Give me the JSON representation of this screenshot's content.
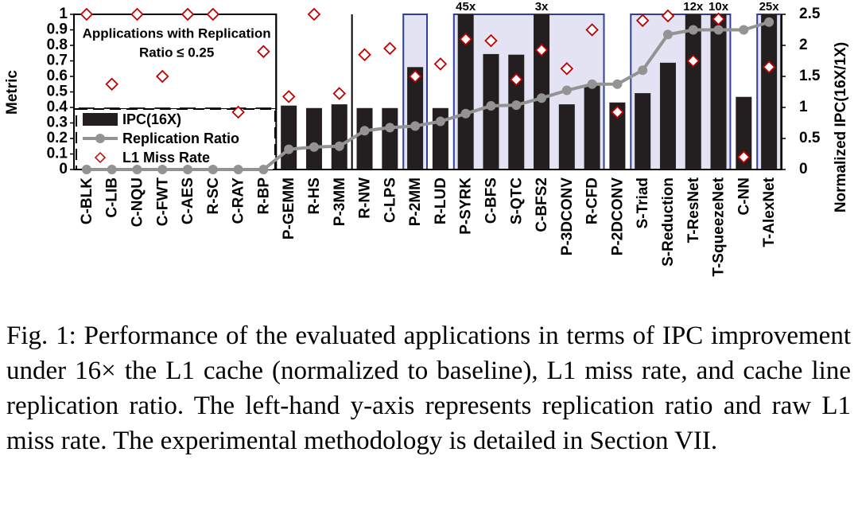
{
  "chart_data": {
    "type": "bar-line",
    "ylabel": "Metric",
    "y2label": "Normalized IPC(16X/1X)",
    "annotation": [
      "Applications with Replication",
      "Ratio ≤ 0.25"
    ],
    "categories": [
      "C-BLK",
      "C-LIB",
      "C-NQU",
      "C-FWT",
      "C-AES",
      "R-SC",
      "C-RAY",
      "R-BP",
      "P-GEMM",
      "R-HS",
      "P-3MM",
      "R-NW",
      "C-LPS",
      "P-2MM",
      "R-LUD",
      "P-SYRK",
      "C-BFS",
      "S-QTC",
      "C-BFS2",
      "P-3DCONV",
      "R-CFD",
      "P-2DCONV",
      "S-Triad",
      "S-Reduction",
      "T-ResNet",
      "T-SqueezeNet",
      "C-NN",
      "T-AlexNet"
    ],
    "series": [
      {
        "name": "IPC(16X)",
        "type": "bar",
        "axis": "y2",
        "color": "#231f20",
        "values": [
          1,
          1,
          1,
          1,
          1,
          1,
          1,
          1,
          1.03,
          0.99,
          1.05,
          0.99,
          0.99,
          1.65,
          0.99,
          45,
          1.86,
          1.85,
          3,
          1.05,
          1.35,
          1.08,
          1.23,
          1.72,
          12,
          10,
          1.17,
          25
        ],
        "value_labels": [
          null,
          null,
          null,
          null,
          null,
          null,
          null,
          null,
          null,
          null,
          null,
          null,
          null,
          null,
          null,
          "45x",
          null,
          null,
          "3x",
          null,
          null,
          null,
          null,
          null,
          "12x",
          "10x",
          null,
          "25x"
        ]
      },
      {
        "name": "Replication Ratio",
        "type": "line",
        "color": "#939393",
        "values": [
          0,
          0,
          0,
          0,
          0,
          0,
          0,
          0,
          0.13,
          0.145,
          0.15,
          0.25,
          0.27,
          0.28,
          0.31,
          0.36,
          0.41,
          0.415,
          0.46,
          0.51,
          0.55,
          0.55,
          0.64,
          0.87,
          0.9,
          0.9,
          0.9,
          0.95
        ]
      },
      {
        "name": "L1 Miss Rate",
        "type": "scatter",
        "color": "#c00000",
        "values": [
          1,
          0.55,
          1,
          0.6,
          1,
          1,
          0.37,
          0.76,
          0.47,
          1,
          0.49,
          0.74,
          0.78,
          0.6,
          0.68,
          0.84,
          0.83,
          0.58,
          0.77,
          0.65,
          0.9,
          0.37,
          0.96,
          0.99,
          0.7,
          0.97,
          0.08,
          0.66
        ]
      }
    ],
    "ylim": [
      0,
      1
    ],
    "yticks": [
      0,
      0.1,
      0.2,
      0.3,
      0.4,
      0.5,
      0.6,
      0.7,
      0.8,
      0.9,
      1
    ],
    "y2lim": [
      0,
      2.5
    ],
    "y2ticks": [
      0,
      0.5,
      1,
      1.5,
      2,
      2.5
    ],
    "legend": "lower left"
  },
  "caption": "Fig. 1: Performance of the evaluated applications in terms of IPC improvement under 16× the L1 cache (normalized to baseline), L1 miss rate, and cache line replication ratio. The left-hand y-axis represents replication ratio and raw L1 miss rate. The experimental methodology is detailed in Section VII."
}
